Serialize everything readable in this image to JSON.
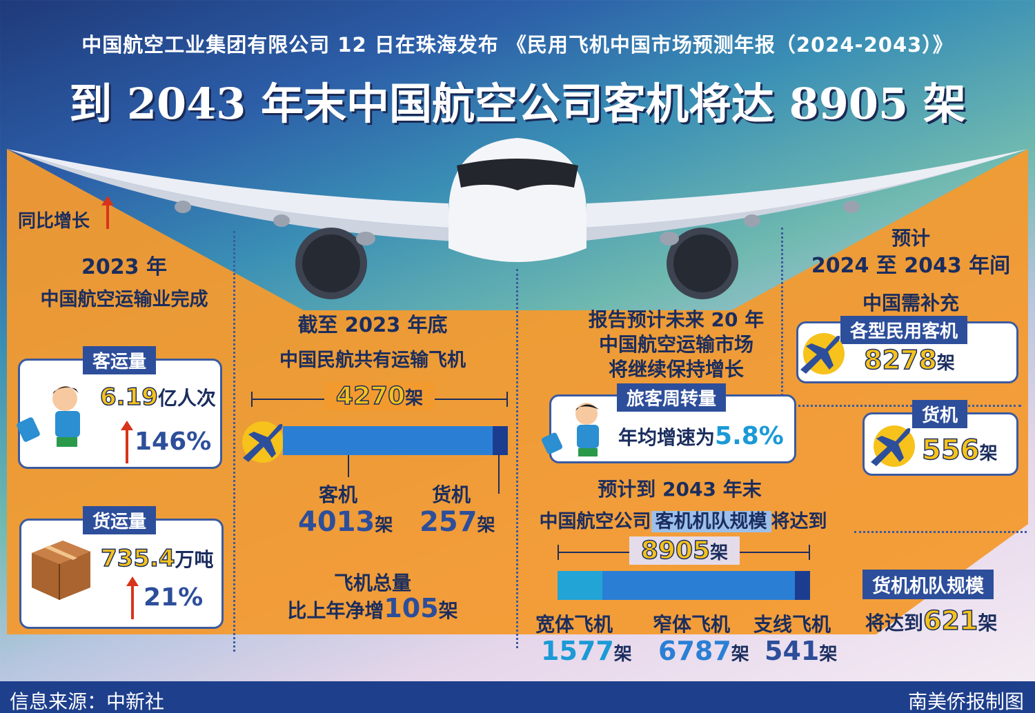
{
  "header": {
    "subtitle": "中国航空工业集团有限公司 12 日在珠海发布 《民用飞机中国市场预测年报（2024-2043）》",
    "title": "到 2043 年末中国航空公司客机将达 8905 架"
  },
  "left": {
    "yoy": "同比增长",
    "year": "2023 年",
    "desc": "中国航空运输业完成",
    "passenger": {
      "tag": "客运量",
      "value": "6.19",
      "unit": "亿人次",
      "growth": "146%"
    },
    "cargo": {
      "tag": "货运量",
      "value": "735.4",
      "unit": "万吨",
      "growth": "21%"
    }
  },
  "mid_left": {
    "line1": "截至 2023 年底",
    "line2": "中国民航共有运输飞机",
    "total_value": "4270",
    "unit": "架",
    "passenger_label": "客机",
    "passenger_value": "4013",
    "cargo_label": "货机",
    "cargo_value": "257",
    "net_line1": "飞机总量",
    "net_prefix": "比上年净增",
    "net_value": "105"
  },
  "mid_right": {
    "line1": "报告预计未来 20 年",
    "line2": "中国航空运输市场",
    "line3": "将继续保持增长",
    "rpk_tag": "旅客周转量",
    "rpk_text": "年均增速为",
    "rpk_value": "5.8%",
    "fleet_line1": "预计到 2043 年末",
    "fleet_prefix": "中国航空公司",
    "fleet_highlight": "客机机队规模",
    "fleet_suffix": "将达到",
    "fleet_value": "8905",
    "unit": "架",
    "wide_label": "宽体飞机",
    "wide_value": "1577",
    "narrow_label": "窄体飞机",
    "narrow_value": "6787",
    "regional_label": "支线飞机",
    "regional_value": "541",
    "bar_shares": {
      "wide": 0.177,
      "narrow": 0.762,
      "regional": 0.061
    }
  },
  "right": {
    "line1": "预计",
    "line2": "2024 至 2043 年间",
    "line3": "中国需补充",
    "civil_tag": "各型民用客机",
    "civil_value": "8278",
    "cargo_tag": "货机",
    "cargo_value": "556",
    "unit": "架",
    "fleet_tag": "货机机队规模",
    "fleet_prefix": "将达到",
    "fleet_value": "621"
  },
  "footer": {
    "source": "信息来源：中新社",
    "credit": "南美侨报制图"
  },
  "colors": {
    "accent": "#2d4e9a",
    "orange": "#f39a2f",
    "yellow": "#f6c21b",
    "cyan": "#1a9ad6"
  }
}
